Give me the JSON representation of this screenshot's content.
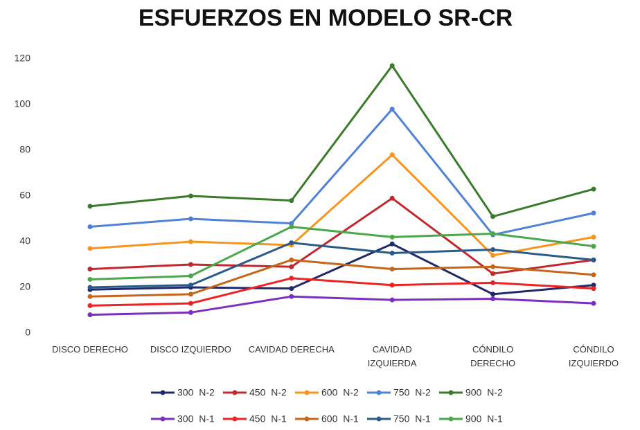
{
  "chart_data": {
    "type": "line",
    "title": "ESFUERZOS EN MODELO SR-CR",
    "categories": [
      "DISCO DERECHO",
      "DISCO IZQUIERDO",
      "CAVIDAD DERECHA",
      "CAVIDAD\nIZQUIERDA",
      "CÓNDILO\nDERECHO",
      "CÓNDILO\nIZQUIERDO"
    ],
    "ylim": [
      0,
      120
    ],
    "yticks": [
      0,
      20,
      40,
      60,
      80,
      100,
      120
    ],
    "grid": false,
    "series": [
      {
        "name": "300 N-2",
        "color": "#1f2a6b",
        "values": [
          19,
          20,
          19.5,
          39,
          17,
          21
        ]
      },
      {
        "name": "450 N-2",
        "color": "#c0282d",
        "values": [
          28,
          30,
          29,
          59,
          26,
          32
        ]
      },
      {
        "name": "600 N-2",
        "color": "#f7941d",
        "values": [
          37,
          40,
          38.5,
          78,
          34,
          42
        ]
      },
      {
        "name": "750 N-2",
        "color": "#4f81d6",
        "values": [
          46.5,
          50,
          48,
          98,
          43,
          52.5
        ]
      },
      {
        "name": "900 N-2",
        "color": "#3a7a2a",
        "values": [
          55.5,
          60,
          58,
          117,
          51,
          63
        ]
      },
      {
        "name": "300 N-1",
        "color": "#7b2fbe",
        "values": [
          8,
          9,
          16,
          14.5,
          15,
          13
        ]
      },
      {
        "name": "450 N-1",
        "color": "#ee2222",
        "values": [
          12,
          13,
          24,
          21,
          22,
          19.5
        ]
      },
      {
        "name": "600 N-1",
        "color": "#c5661a",
        "values": [
          16,
          17,
          32,
          28,
          29,
          25.5
        ]
      },
      {
        "name": "750 N-1",
        "color": "#2a5a8a",
        "values": [
          20,
          21,
          39.5,
          35,
          36.5,
          32
        ]
      },
      {
        "name": "900 N-1",
        "color": "#4aa84a",
        "values": [
          23.5,
          25,
          46.5,
          42,
          43.5,
          38
        ]
      }
    ]
  }
}
